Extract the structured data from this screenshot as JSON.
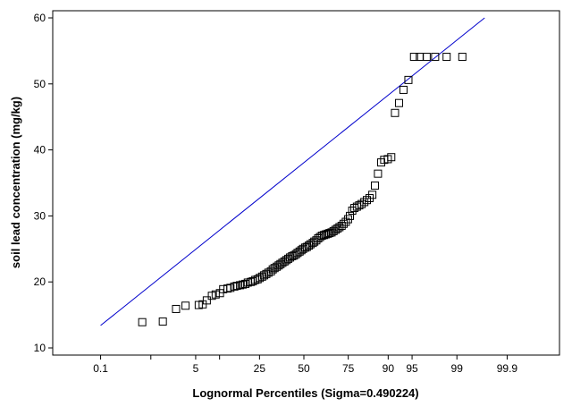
{
  "chart_data": {
    "type": "scatter",
    "title": "",
    "xlabel": "Lognormal Percentiles (Sigma=0.490224)",
    "ylabel": "soil lead concentration (mg/kg)",
    "x_scale": "lognormal percentile",
    "xlim": [
      0.1,
      99.9
    ],
    "x_ticks": [
      0.1,
      1,
      5,
      10,
      25,
      50,
      75,
      90,
      95,
      99,
      99.9
    ],
    "x_tick_labels": [
      "0.1",
      "",
      "5",
      "",
      "25",
      "50",
      "75",
      "90",
      "95",
      "99",
      "99.9"
    ],
    "ylim": [
      10,
      60
    ],
    "y_ticks": [
      10,
      20,
      30,
      40,
      50,
      60
    ],
    "y_tick_labels": [
      "10",
      "20",
      "30",
      "40",
      "50",
      "60"
    ],
    "grid": false,
    "marker": "open-square",
    "reference_line": {
      "color": "#0000cc",
      "x": [
        0.1,
        99.7
      ],
      "y": [
        13.4,
        60.0
      ]
    },
    "points": {
      "x": [
        0.7,
        1.6,
        2.6,
        3.6,
        5.5,
        6.2,
        7.0,
        8.1,
        9.0,
        10.1,
        11.0,
        12.3,
        13.2,
        14.5,
        15.4,
        16.6,
        17.6,
        18.7,
        19.7,
        21.0,
        21.9,
        23.0,
        24.1,
        25.1,
        26.3,
        27.3,
        28.4,
        29.5,
        30.8,
        31.8,
        32.8,
        34.0,
        35.1,
        36.1,
        37.2,
        38.4,
        39.5,
        40.6,
        41.7,
        42.9,
        44.0,
        45.2,
        46.2,
        47.4,
        48.5,
        49.5,
        50.8,
        51.8,
        53.0,
        54.0,
        55.4,
        56.3,
        57.5,
        58.6,
        59.7,
        60.8,
        62.0,
        63.0,
        64.2,
        65.2,
        66.3,
        67.4,
        68.5,
        69.6,
        70.6,
        71.7,
        72.7,
        73.8,
        74.9,
        75.8,
        76.9,
        77.9,
        79.0,
        80.0,
        81.0,
        82.1,
        83.1,
        84.1,
        85.1,
        86.0,
        87.0,
        88.0,
        88.9,
        89.9,
        90.8,
        91.7,
        92.6,
        93.5,
        94.4,
        95.3,
        96.1,
        96.9,
        97.7,
        98.5,
        99.2
      ],
      "y": [
        13.9,
        14.0,
        15.9,
        16.4,
        16.5,
        16.6,
        17.2,
        17.9,
        18.1,
        18.3,
        18.9,
        19.0,
        19.1,
        19.3,
        19.4,
        19.5,
        19.6,
        19.7,
        19.9,
        20.0,
        20.1,
        20.3,
        20.4,
        20.6,
        20.8,
        21.0,
        21.2,
        21.4,
        21.6,
        21.9,
        22.1,
        22.3,
        22.5,
        22.7,
        22.9,
        23.1,
        23.3,
        23.5,
        23.7,
        23.9,
        24.0,
        24.2,
        24.4,
        24.6,
        24.8,
        25.0,
        25.2,
        25.3,
        25.5,
        25.7,
        25.9,
        26.1,
        26.3,
        26.6,
        26.8,
        27.0,
        27.1,
        27.2,
        27.3,
        27.4,
        27.5,
        27.7,
        27.9,
        28.1,
        28.3,
        28.5,
        28.8,
        29.1,
        29.5,
        30.0,
        30.8,
        31.2,
        31.4,
        31.6,
        31.8,
        32.1,
        32.4,
        32.7,
        33.2,
        34.6,
        36.4,
        38.1,
        38.5,
        38.6,
        38.9,
        45.6,
        47.1,
        49.1,
        50.6,
        54.1,
        54.1,
        54.1,
        54.1,
        54.1,
        54.1
      ]
    }
  }
}
